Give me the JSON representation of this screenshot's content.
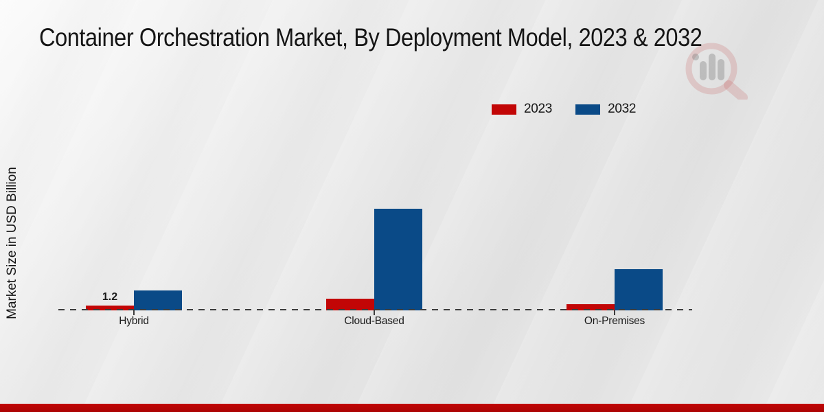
{
  "title": "Container Orchestration Market, By Deployment Model, 2023 & 2032",
  "y_axis_label": "Market Size in USD Billion",
  "legend": {
    "items": [
      {
        "label": "2023",
        "color": "#c20606"
      },
      {
        "label": "2032",
        "color": "#0a4a87"
      }
    ]
  },
  "watermark_icon": "magnifier-bar-chart-logo",
  "colors": {
    "background_light": "#fbfbfb",
    "background_gray": "#e3e3e3",
    "bar_2023_red": "#c20606",
    "bar_2032_blue": "#0a4a87",
    "baseline_dash": "#3c3c3c",
    "footer_band_red": "#b30404",
    "text": "#151515"
  },
  "chart_data": {
    "type": "bar",
    "title": "Container Orchestration Market, By Deployment Model, 2023 & 2032",
    "categories": [
      "Hybrid",
      "Cloud-Based",
      "On-Premises"
    ],
    "series": [
      {
        "name": "2023",
        "color": "#c20606",
        "values": [
          1.2,
          2.9,
          1.5
        ]
      },
      {
        "name": "2032",
        "color": "#0a4a87",
        "values": [
          5.0,
          25.4,
          10.3
        ]
      }
    ],
    "bar_labels": [
      {
        "series": 0,
        "category": 0,
        "text": "1.2"
      }
    ],
    "xlabel": "",
    "ylabel": "Market Size in USD Billion",
    "baseline_value": 0,
    "y_axis_ticks_visible": false,
    "grid": false,
    "legend_position": "top-right"
  }
}
